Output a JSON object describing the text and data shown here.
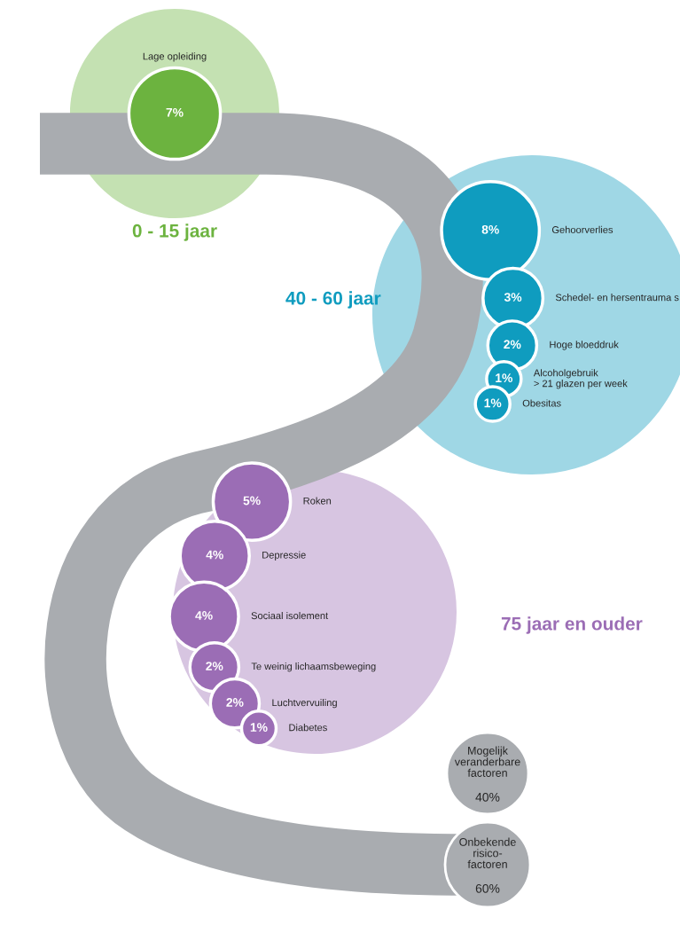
{
  "chart_data": {
    "type": "other",
    "categories": [
      "Lage opleiding",
      "Gehoorverlies",
      "Schedel- en hersentrauma s",
      "Hoge bloeddruk",
      "Alcoholgebruik\n> 21 glazen per week",
      "Obesitas",
      "Roken",
      "Depressie",
      "Sociaal isolement",
      "Te weinig lichaamsbeweging",
      "Luchtvervuiling",
      "Diabetes",
      "Mogelijk\nveranderbare\nfactoren",
      "Onbekende\nrisico-\nfactoren"
    ],
    "series": [
      {
        "name": "0 - 15 jaar",
        "color": "#6cb33f",
        "values": [
          7,
          null,
          null,
          null,
          null,
          null,
          null,
          null,
          null,
          null,
          null,
          null,
          null,
          null
        ],
        "value_labels": [
          "7%",
          null,
          null,
          null,
          null,
          null,
          null,
          null,
          null,
          null,
          null,
          null,
          null,
          null
        ]
      },
      {
        "name": "40 - 60 jaar",
        "color": "#0f9cbf",
        "values": [
          null,
          8,
          3,
          2,
          1,
          1,
          null,
          null,
          null,
          null,
          null,
          null,
          null,
          null
        ],
        "value_labels": [
          null,
          "8%",
          "3%",
          "2%",
          "1%",
          "1%",
          null,
          null,
          null,
          null,
          null,
          null,
          null,
          null
        ]
      },
      {
        "name": "75 jaar en ouder",
        "color": "#9b6db5",
        "values": [
          null,
          null,
          null,
          null,
          null,
          null,
          5,
          4,
          4,
          2,
          2,
          1,
          null,
          null
        ],
        "value_labels": [
          null,
          null,
          null,
          null,
          null,
          null,
          "5%",
          "4%",
          "4%",
          "2%",
          "2%",
          "1%",
          null,
          null
        ]
      },
      {
        "color": "#a9acb0",
        "values": [
          null,
          null,
          null,
          null,
          null,
          null,
          null,
          null,
          null,
          null,
          null,
          null,
          40,
          60
        ],
        "value_labels": [
          null,
          null,
          null,
          null,
          null,
          null,
          null,
          null,
          null,
          null,
          null,
          null,
          "40%",
          "60%"
        ]
      }
    ]
  }
}
